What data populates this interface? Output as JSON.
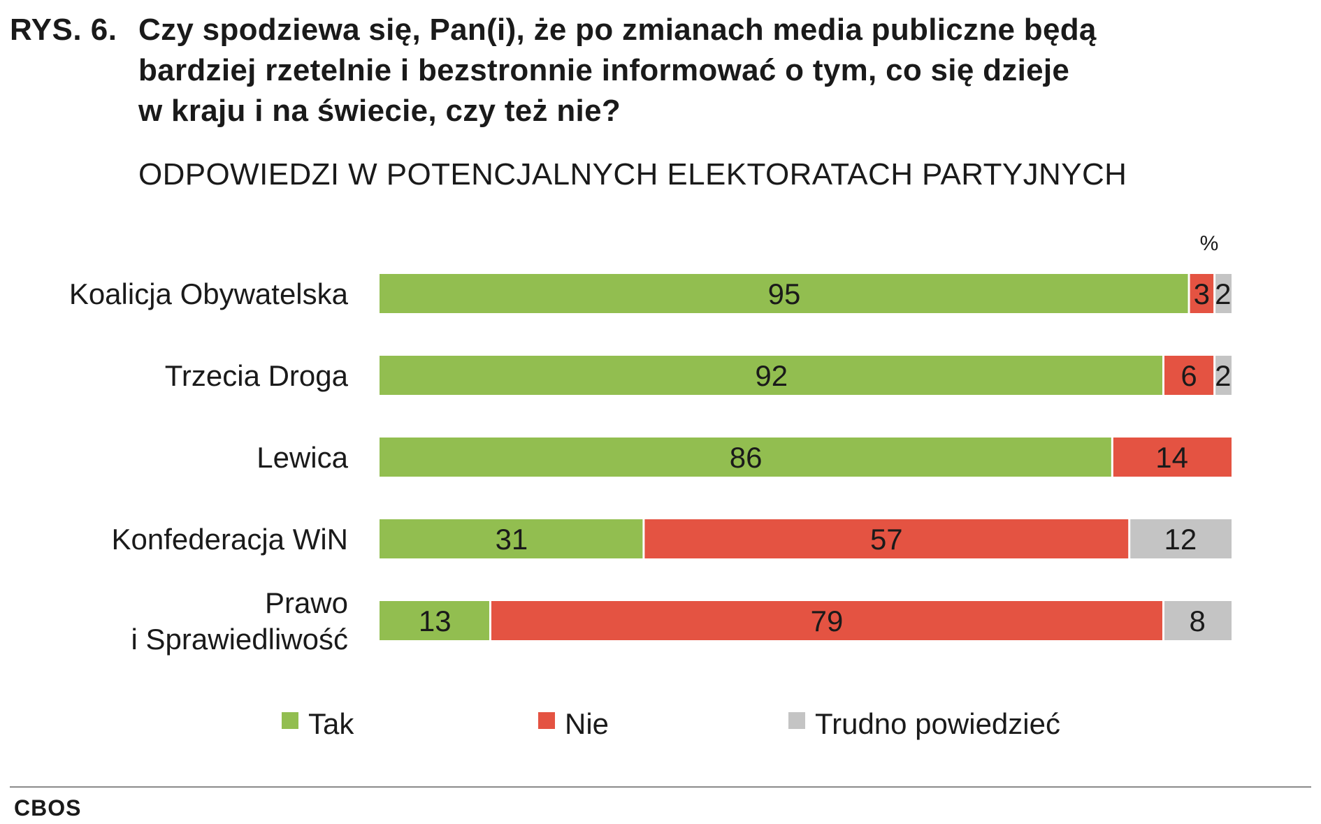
{
  "figure": {
    "label": "RYS. 6.",
    "title_lines": [
      "Czy spodziewa się, Pan(i), że po zmianach media publiczne będą",
      "bardziej rzetelnie i bezstronnie informować o tym, co się dzieje",
      "w kraju i na świecie, czy też nie?"
    ],
    "subtitle": "ODPOWIEDZI W POTENCJALNYCH ELEKTORATACH PARTYJNYCH",
    "source": "CBOS"
  },
  "chart_data": {
    "type": "bar",
    "orientation": "horizontal",
    "stacked": true,
    "unit_label": "%",
    "categories": [
      [
        "Koalicja Obywatelska"
      ],
      [
        "Trzecia Droga"
      ],
      [
        "Lewica"
      ],
      [
        "Konfederacja WiN"
      ],
      [
        "Prawo",
        "i Sprawiedliwość"
      ]
    ],
    "series": [
      {
        "name": "Tak",
        "color": "#92be50",
        "values": [
          95,
          92,
          86,
          31,
          13
        ]
      },
      {
        "name": "Nie",
        "color": "#e45342",
        "values": [
          3,
          6,
          14,
          57,
          79
        ]
      },
      {
        "name": "Trudno powiedzieć",
        "color": "#c4c4c4",
        "values": [
          2,
          2,
          0,
          12,
          8
        ]
      }
    ],
    "xlim": [
      0,
      100
    ],
    "grid": false,
    "legend_position": "bottom"
  }
}
